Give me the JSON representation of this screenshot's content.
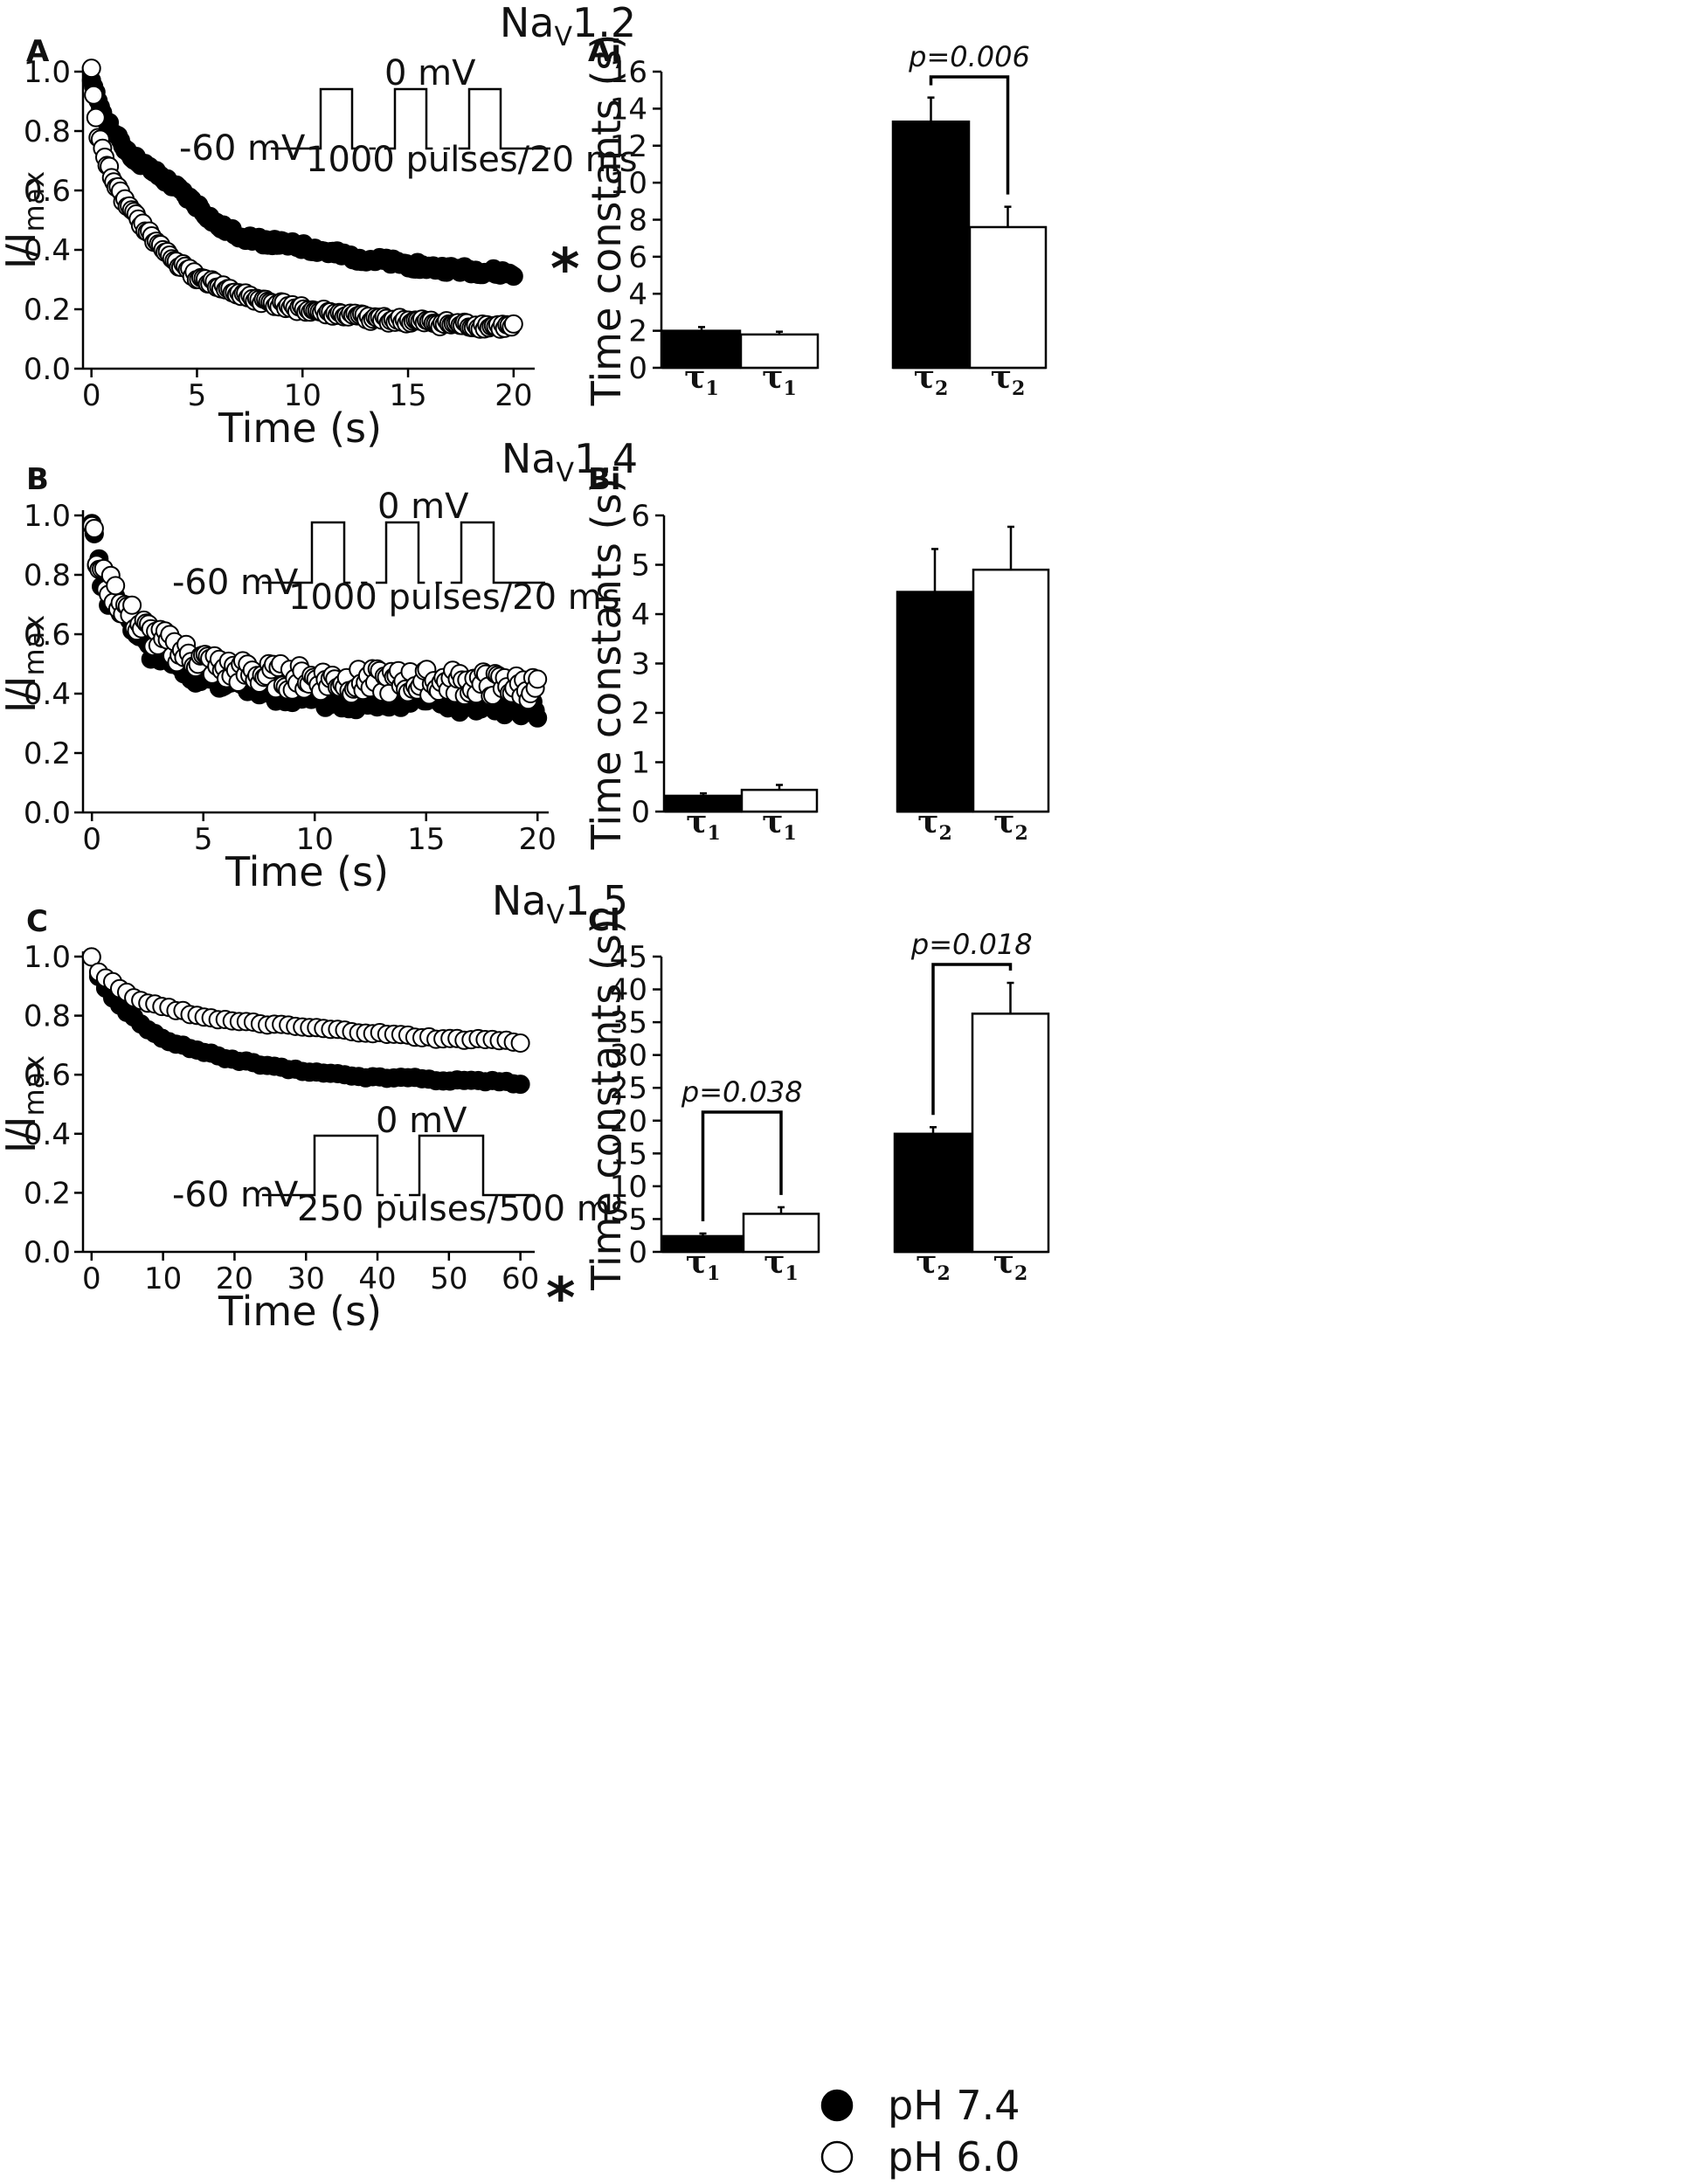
{
  "figure": {
    "legend": {
      "items": [
        {
          "label": "pH 7.4",
          "fill": "#000000"
        },
        {
          "label": "pH 6.0",
          "fill": "#ffffff"
        }
      ]
    }
  },
  "chart_data": [
    {
      "id": "A",
      "type": "scatter",
      "panel_label": "A",
      "title": "NaV1.2",
      "title_main": "Na",
      "title_sub": "V",
      "title_rest": "1.2",
      "xlabel": "Time (s)",
      "ylabel_main": "I/I",
      "ylabel_sub": "max",
      "xlim": [
        0,
        20
      ],
      "ylim": [
        0,
        1
      ],
      "xticks": [
        0,
        5,
        10,
        15,
        20
      ],
      "yticks": [
        0.0,
        0.2,
        0.4,
        0.6,
        0.8,
        1.0
      ],
      "protocol": {
        "hold": "-60 mV",
        "step": "0 mV",
        "train": "1000 pulses/20 ms",
        "n_steps": 3
      },
      "annotation": "*",
      "series": [
        {
          "name": "pH 7.4",
          "fill": "#000000",
          "x": [
            0,
            0.5,
            1,
            1.5,
            2,
            3,
            4,
            5,
            6,
            7,
            8,
            10,
            12,
            14,
            16,
            18,
            20
          ],
          "values": [
            0.96,
            0.87,
            0.8,
            0.75,
            0.71,
            0.66,
            0.61,
            0.55,
            0.48,
            0.45,
            0.43,
            0.41,
            0.38,
            0.36,
            0.34,
            0.33,
            0.32
          ]
        },
        {
          "name": "pH 6.0",
          "fill": "#ffffff",
          "x": [
            0,
            0.3,
            0.6,
            1,
            1.5,
            2,
            3,
            4,
            5,
            6,
            7,
            8,
            10,
            12,
            14,
            16,
            18,
            20
          ],
          "values": [
            1.0,
            0.79,
            0.72,
            0.64,
            0.57,
            0.52,
            0.43,
            0.36,
            0.31,
            0.28,
            0.25,
            0.23,
            0.2,
            0.18,
            0.165,
            0.155,
            0.145,
            0.14
          ]
        }
      ]
    },
    {
      "id": "B",
      "type": "scatter",
      "panel_label": "B",
      "title": "NaV1.4",
      "title_main": "Na",
      "title_sub": "V",
      "title_rest": "1.4",
      "xlabel": "Time (s)",
      "ylabel_main": "I/I",
      "ylabel_sub": "max",
      "xlim": [
        0,
        20
      ],
      "ylim": [
        0,
        1
      ],
      "xticks": [
        0,
        5,
        10,
        15,
        20
      ],
      "yticks": [
        0.0,
        0.2,
        0.4,
        0.6,
        0.8,
        1.0
      ],
      "protocol": {
        "hold": "-60 mV",
        "step": "0 mV",
        "train": "1000 pulses/20 ms",
        "n_steps": 3
      },
      "series": [
        {
          "name": "pH 7.4",
          "fill": "#000000",
          "x": [
            0,
            0.2,
            0.5,
            1,
            1.5,
            2,
            3,
            4,
            5,
            6,
            8,
            10,
            12,
            14,
            16,
            18,
            20
          ],
          "values": [
            1.0,
            0.88,
            0.77,
            0.7,
            0.65,
            0.6,
            0.54,
            0.5,
            0.47,
            0.45,
            0.42,
            0.4,
            0.39,
            0.39,
            0.38,
            0.37,
            0.36
          ]
        },
        {
          "name": "pH 6.0",
          "fill": "#ffffff",
          "x": [
            0,
            0.2,
            0.5,
            1,
            1.5,
            2,
            3,
            4,
            5,
            6,
            8,
            10,
            12,
            14,
            16,
            18,
            20
          ],
          "values": [
            0.99,
            0.85,
            0.79,
            0.74,
            0.69,
            0.64,
            0.58,
            0.54,
            0.51,
            0.48,
            0.46,
            0.45,
            0.44,
            0.44,
            0.44,
            0.43,
            0.42
          ]
        }
      ]
    },
    {
      "id": "C",
      "type": "scatter",
      "panel_label": "C",
      "title": "NaV1.5",
      "title_main": "Na",
      "title_sub": "V",
      "title_rest": "1.5",
      "xlabel": "Time (s)",
      "ylabel_main": "I/I",
      "ylabel_sub": "max",
      "xlim": [
        0,
        60
      ],
      "ylim": [
        0,
        1
      ],
      "xticks": [
        0,
        10,
        20,
        30,
        40,
        50,
        60
      ],
      "yticks": [
        0.0,
        0.2,
        0.4,
        0.6,
        0.8,
        1.0
      ],
      "protocol": {
        "hold": "-60 mV",
        "step": "0 mV",
        "train": "250 pulses/500 ms",
        "n_steps": 2
      },
      "annotation": "*",
      "series": [
        {
          "name": "pH 7.4",
          "fill": "#000000",
          "x": [
            0,
            1,
            2,
            4,
            6,
            8,
            10,
            15,
            20,
            25,
            30,
            35,
            40,
            45,
            50,
            55,
            60
          ],
          "values": [
            1.0,
            0.93,
            0.89,
            0.83,
            0.79,
            0.75,
            0.72,
            0.68,
            0.65,
            0.63,
            0.61,
            0.6,
            0.59,
            0.59,
            0.58,
            0.58,
            0.57
          ]
        },
        {
          "name": "pH 6.0",
          "fill": "#ffffff",
          "x": [
            0,
            1,
            2,
            4,
            6,
            8,
            10,
            15,
            20,
            25,
            30,
            35,
            40,
            45,
            50,
            55,
            60
          ],
          "values": [
            1.0,
            0.95,
            0.93,
            0.89,
            0.86,
            0.84,
            0.83,
            0.8,
            0.78,
            0.77,
            0.76,
            0.75,
            0.74,
            0.73,
            0.72,
            0.72,
            0.71
          ]
        }
      ]
    },
    {
      "id": "Ai",
      "type": "bar",
      "panel_label": "Ai",
      "ylabel": "Time constants (s)",
      "ylim": [
        0,
        16
      ],
      "yticks": [
        0,
        2,
        4,
        6,
        8,
        10,
        12,
        14,
        16
      ],
      "tau_symbol": "τ",
      "bars": [
        {
          "label": "τ1",
          "group": 1,
          "series": "pH 7.4",
          "value": 2.0,
          "error": 0.2,
          "fill": "#000000",
          "sub": "1"
        },
        {
          "label": "τ1",
          "group": 1,
          "series": "pH 6.0",
          "value": 1.8,
          "error": 0.15,
          "fill": "#ffffff",
          "sub": "1"
        },
        {
          "label": "τ2",
          "group": 2,
          "series": "pH 7.4",
          "value": 13.3,
          "error": 1.3,
          "fill": "#000000",
          "sub": "2"
        },
        {
          "label": "τ2",
          "group": 2,
          "series": "pH 6.0",
          "value": 7.6,
          "error": 1.1,
          "fill": "#ffffff",
          "sub": "2"
        }
      ],
      "brackets": [
        {
          "group": 2,
          "label": "p=0.006"
        }
      ]
    },
    {
      "id": "Bi",
      "type": "bar",
      "panel_label": "Bi",
      "ylabel": "Time constants (s)",
      "ylim": [
        0,
        6
      ],
      "yticks": [
        0,
        1,
        2,
        3,
        4,
        5,
        6
      ],
      "tau_symbol": "τ",
      "bars": [
        {
          "label": "τ1",
          "group": 1,
          "series": "pH 7.4",
          "value": 0.32,
          "error": 0.05,
          "fill": "#000000",
          "sub": "1"
        },
        {
          "label": "τ1",
          "group": 1,
          "series": "pH 6.0",
          "value": 0.44,
          "error": 0.1,
          "fill": "#ffffff",
          "sub": "1"
        },
        {
          "label": "τ2",
          "group": 2,
          "series": "pH 7.4",
          "value": 4.45,
          "error": 0.87,
          "fill": "#000000",
          "sub": "2"
        },
        {
          "label": "τ2",
          "group": 2,
          "series": "pH 6.0",
          "value": 4.9,
          "error": 0.87,
          "fill": "#ffffff",
          "sub": "2"
        }
      ],
      "brackets": []
    },
    {
      "id": "Ci",
      "type": "bar",
      "panel_label": "Ci",
      "ylabel": "Time constants (s)",
      "ylim": [
        0,
        45
      ],
      "yticks": [
        0,
        5,
        10,
        15,
        20,
        25,
        30,
        35,
        40,
        45
      ],
      "tau_symbol": "τ",
      "bars": [
        {
          "label": "τ1",
          "group": 1,
          "series": "pH 7.4",
          "value": 2.4,
          "error": 0.4,
          "fill": "#000000",
          "sub": "1"
        },
        {
          "label": "τ1",
          "group": 1,
          "series": "pH 6.0",
          "value": 5.8,
          "error": 1.0,
          "fill": "#ffffff",
          "sub": "1"
        },
        {
          "label": "τ2",
          "group": 2,
          "series": "pH 7.4",
          "value": 18.0,
          "error": 1.0,
          "fill": "#000000",
          "sub": "2"
        },
        {
          "label": "τ2",
          "group": 2,
          "series": "pH 6.0",
          "value": 36.3,
          "error": 4.7,
          "fill": "#ffffff",
          "sub": "2"
        }
      ],
      "brackets": [
        {
          "group": 1,
          "label": "p=0.038"
        },
        {
          "group": 2,
          "label": "p=0.018"
        }
      ]
    }
  ]
}
